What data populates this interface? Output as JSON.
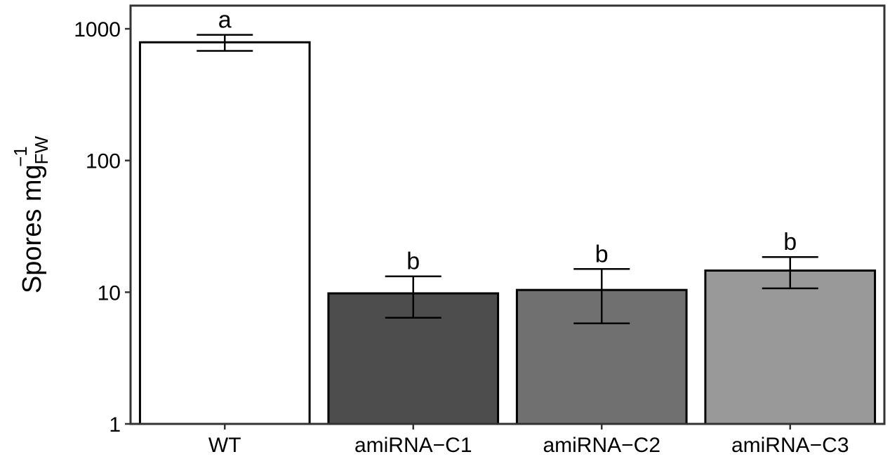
{
  "chart_data": {
    "type": "bar",
    "yscale": "log",
    "ylim": [
      1,
      1500
    ],
    "yticks": [
      {
        "value": 1,
        "label": "1"
      },
      {
        "value": 10,
        "label": "10"
      },
      {
        "value": 100,
        "label": "100"
      },
      {
        "value": 1000,
        "label": "1000"
      }
    ],
    "ylabel": {
      "main": "Spores mg",
      "subscript": "FW",
      "superscript": "−1"
    },
    "xlabel": "",
    "categories": [
      "WT",
      "amiRNA−C1",
      "amiRNA−C2",
      "amiRNA−C3"
    ],
    "values": [
      790,
      9.8,
      10.4,
      14.6
    ],
    "error_low": [
      680,
      6.4,
      5.8,
      10.7
    ],
    "error_high": [
      900,
      13.2,
      15.0,
      18.5
    ],
    "significance": [
      "a",
      "b",
      "b",
      "b"
    ],
    "colors": [
      "#ffffff",
      "#4d4d4d",
      "#707070",
      "#999999"
    ],
    "bar_stroke": "#000000",
    "grid": false,
    "legend": "none"
  }
}
